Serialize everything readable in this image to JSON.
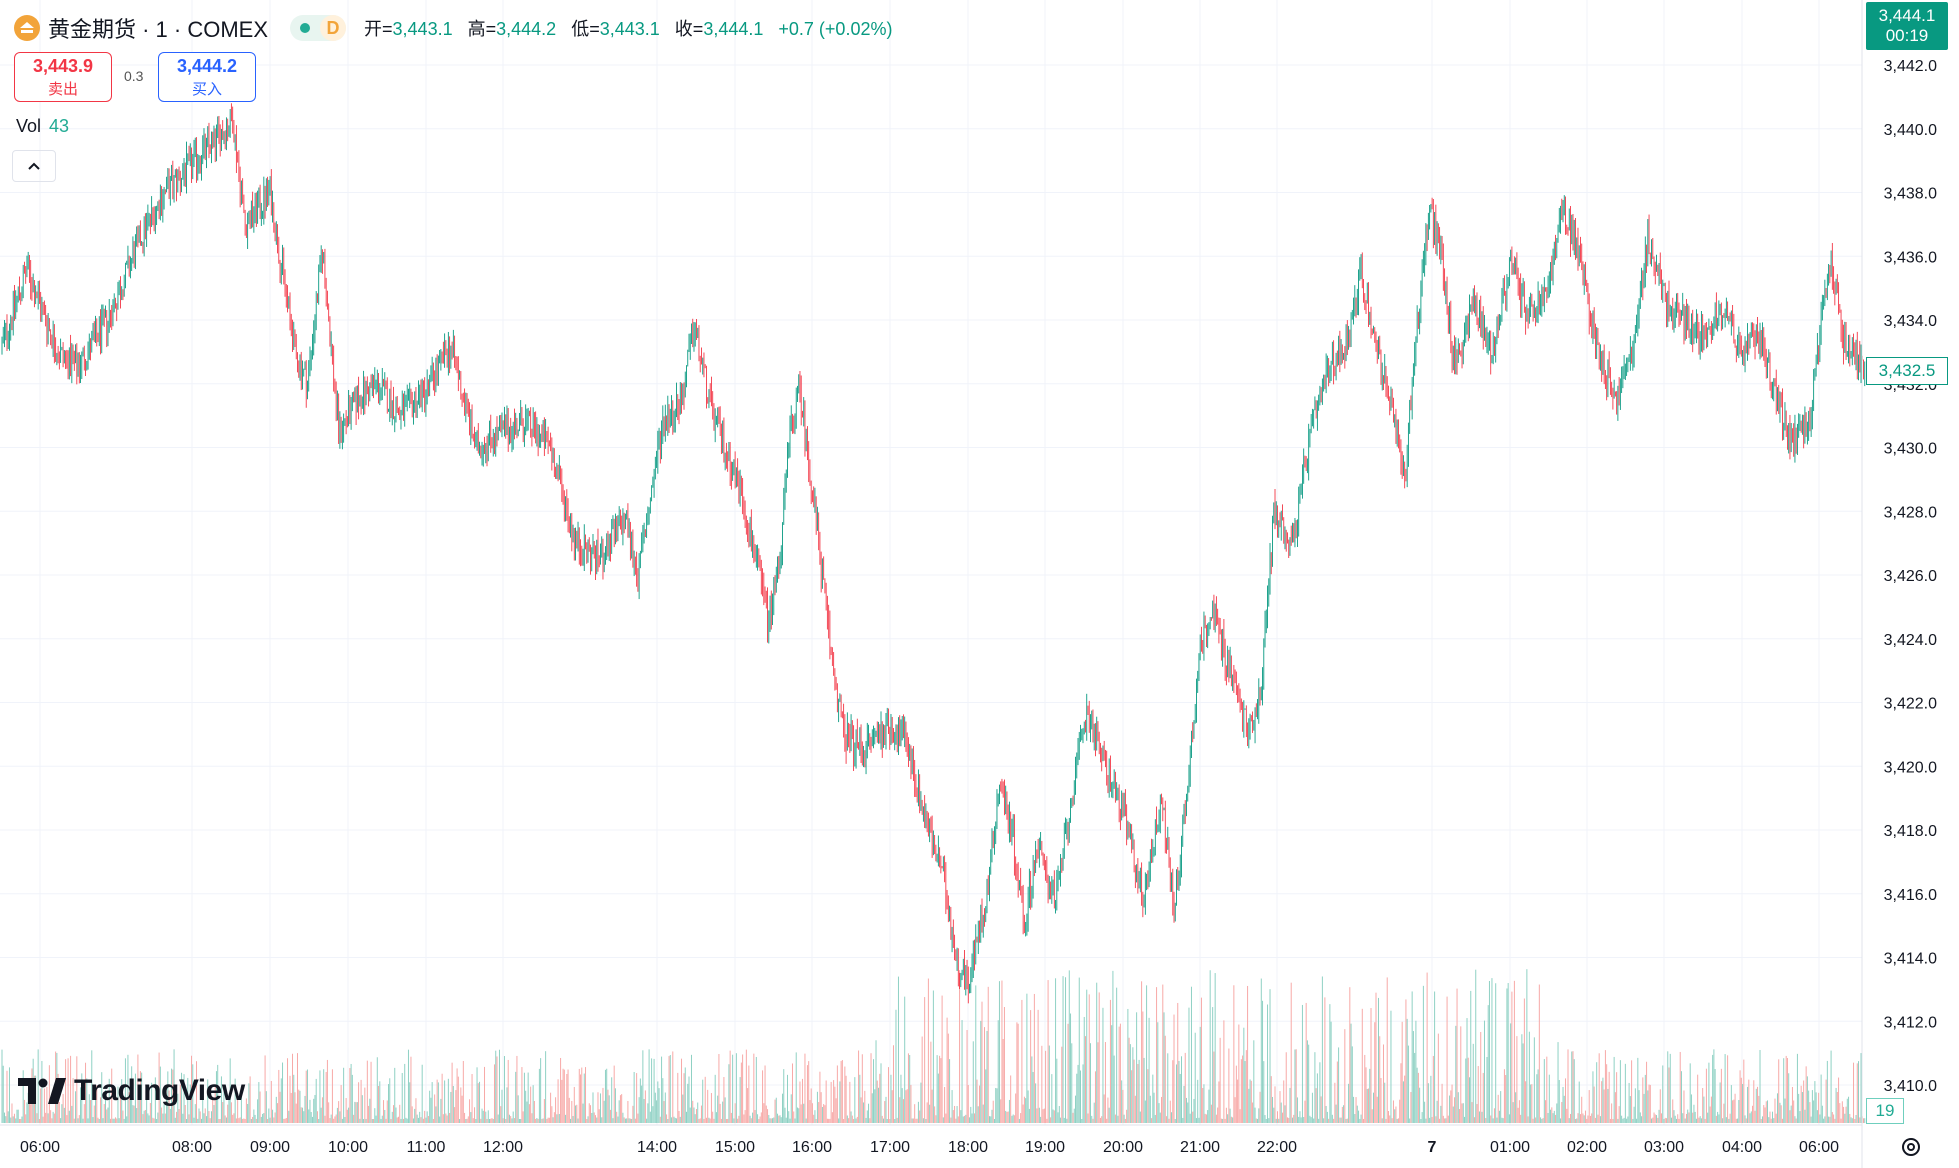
{
  "symbol": {
    "name": "黄金期货 · 1 · COMEX",
    "status_letter": "D"
  },
  "ohlc": {
    "open_label": "开=",
    "open": "3,443.1",
    "high_label": "高=",
    "high": "3,444.2",
    "low_label": "低=",
    "low": "3,443.1",
    "close_label": "收=",
    "close": "3,444.1",
    "change": "+0.7 (+0.02%)"
  },
  "trade": {
    "sell_price": "3,443.9",
    "sell_label": "卖出",
    "spread": "0.3",
    "buy_price": "3,444.2",
    "buy_label": "买入"
  },
  "volume_indicator": {
    "label": "Vol",
    "value": "43"
  },
  "brand": {
    "name": "TradingView"
  },
  "badges": {
    "last_price": "3,444.1",
    "countdown": "00:19",
    "current_price": "3,432.5",
    "volume": "19"
  },
  "colors": {
    "up": "#089981",
    "down": "#f23645",
    "up_volume": "#8fd1c4",
    "down_volume": "#f7a9a7"
  },
  "chart_data": {
    "type": "candlestick",
    "y_axis_side": "right",
    "ylim": [
      3409,
      3443
    ],
    "y_ticks": [
      "3,442.0",
      "3,440.0",
      "3,438.0",
      "3,436.0",
      "3,434.0",
      "3,432.0",
      "3,430.0",
      "3,428.0",
      "3,426.0",
      "3,424.0",
      "3,422.0",
      "3,420.0",
      "3,418.0",
      "3,416.0",
      "3,414.0",
      "3,412.0",
      "3,410.0"
    ],
    "x_ticks": [
      "06:00",
      "08:00",
      "09:00",
      "10:00",
      "11:00",
      "12:00",
      "14:00",
      "15:00",
      "16:00",
      "17:00",
      "18:00",
      "19:00",
      "20:00",
      "21:00",
      "22:00",
      "7",
      "01:00",
      "02:00",
      "03:00",
      "04:00",
      "06:00"
    ],
    "grid": true,
    "price_path": [
      [
        0,
        3433.2
      ],
      [
        20,
        3435.6
      ],
      [
        45,
        3433.0
      ],
      [
        60,
        3432.5
      ],
      [
        85,
        3434.0
      ],
      [
        110,
        3436.5
      ],
      [
        130,
        3438.0
      ],
      [
        150,
        3438.8
      ],
      [
        175,
        3439.8
      ],
      [
        185,
        3440.3
      ],
      [
        195,
        3437.0
      ],
      [
        215,
        3438.0
      ],
      [
        235,
        3433.0
      ],
      [
        245,
        3432.0
      ],
      [
        257,
        3436.2
      ],
      [
        270,
        3430.5
      ],
      [
        285,
        3431.5
      ],
      [
        300,
        3432.0
      ],
      [
        320,
        3431.0
      ],
      [
        340,
        3431.8
      ],
      [
        360,
        3433.2
      ],
      [
        380,
        3430.0
      ],
      [
        400,
        3430.5
      ],
      [
        420,
        3430.8
      ],
      [
        440,
        3430.0
      ],
      [
        460,
        3427.0
      ],
      [
        480,
        3426.5
      ],
      [
        500,
        3427.8
      ],
      [
        510,
        3426.0
      ],
      [
        530,
        3430.8
      ],
      [
        545,
        3431.5
      ],
      [
        555,
        3433.8
      ],
      [
        570,
        3431.0
      ],
      [
        590,
        3429.0
      ],
      [
        605,
        3426.5
      ],
      [
        615,
        3424.5
      ],
      [
        625,
        3427.0
      ],
      [
        632,
        3430.5
      ],
      [
        640,
        3431.8
      ],
      [
        655,
        3427.0
      ],
      [
        665,
        3423.5
      ],
      [
        675,
        3421.0
      ],
      [
        690,
        3420.5
      ],
      [
        710,
        3421.3
      ],
      [
        725,
        3420.8
      ],
      [
        740,
        3418.5
      ],
      [
        755,
        3416.5
      ],
      [
        765,
        3414.0
      ],
      [
        775,
        3413.2
      ],
      [
        790,
        3416.0
      ],
      [
        800,
        3419.5
      ],
      [
        810,
        3418.0
      ],
      [
        820,
        3415.0
      ],
      [
        830,
        3417.5
      ],
      [
        845,
        3415.8
      ],
      [
        860,
        3419.5
      ],
      [
        870,
        3421.8
      ],
      [
        885,
        3420.0
      ],
      [
        900,
        3418.5
      ],
      [
        915,
        3415.8
      ],
      [
        930,
        3419.0
      ],
      [
        940,
        3415.5
      ],
      [
        950,
        3419.0
      ],
      [
        960,
        3423.5
      ],
      [
        970,
        3425.0
      ],
      [
        985,
        3423.0
      ],
      [
        1000,
        3421.0
      ],
      [
        1010,
        3422.5
      ],
      [
        1020,
        3428.0
      ],
      [
        1035,
        3427.0
      ],
      [
        1050,
        3430.5
      ],
      [
        1065,
        3432.5
      ],
      [
        1080,
        3433.5
      ],
      [
        1090,
        3435.5
      ],
      [
        1100,
        3433.5
      ],
      [
        1110,
        3432.0
      ],
      [
        1125,
        3429.0
      ],
      [
        1135,
        3434.0
      ],
      [
        1145,
        3437.5
      ],
      [
        1155,
        3436.0
      ],
      [
        1165,
        3432.5
      ],
      [
        1180,
        3434.5
      ],
      [
        1195,
        3433.0
      ],
      [
        1210,
        3435.8
      ],
      [
        1225,
        3434.0
      ],
      [
        1240,
        3435.0
      ],
      [
        1252,
        3437.5
      ],
      [
        1265,
        3436.0
      ],
      [
        1280,
        3433.0
      ],
      [
        1295,
        3431.5
      ],
      [
        1310,
        3433.5
      ],
      [
        1320,
        3436.5
      ],
      [
        1335,
        3434.5
      ],
      [
        1350,
        3434.0
      ],
      [
        1365,
        3433.5
      ],
      [
        1380,
        3434.5
      ],
      [
        1395,
        3433.0
      ],
      [
        1410,
        3433.5
      ],
      [
        1420,
        3432.0
      ],
      [
        1435,
        3430.0
      ],
      [
        1450,
        3431.0
      ],
      [
        1460,
        3434.0
      ],
      [
        1467,
        3436.0
      ],
      [
        1475,
        3433.5
      ],
      [
        1485,
        3433.0
      ],
      [
        1495,
        3432.5
      ]
    ],
    "candle_count": 1495
  }
}
